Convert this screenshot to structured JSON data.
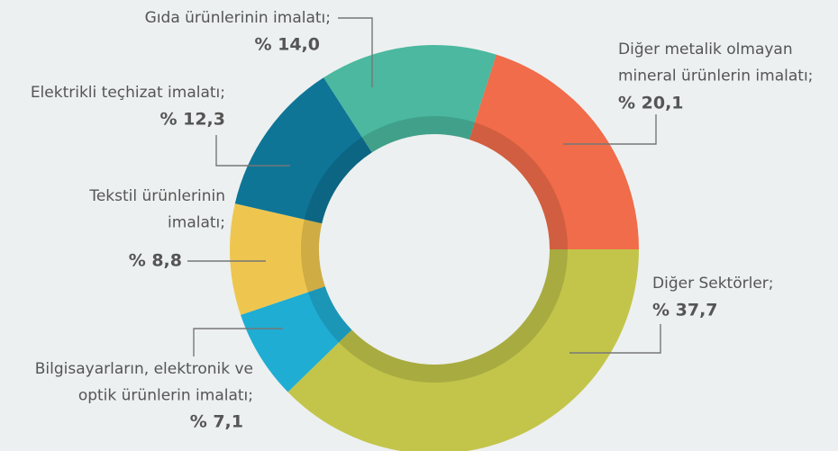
{
  "chart_data": {
    "type": "donut",
    "categories": [
      "Diğer metalik olmayan\nmineral ürünlerin imalatı;",
      "Diğer Sektörler;",
      "Bilgisayarların, elektronik ve\noptik ürünlerin imalatı;",
      "Tekstil ürünlerinin\nimalatı;",
      "Elektrikli teçhizat imalatı;",
      "Gıda ürünlerinin imalatı;"
    ],
    "values": [
      20.1,
      37.7,
      7.1,
      8.8,
      12.3,
      14.0
    ],
    "value_labels": [
      "% 20,1",
      "% 37,7",
      "% 7,1",
      "% 8,8",
      "% 12,3",
      "% 14,0"
    ],
    "colors": [
      "#f06c4a",
      "#c2c54a",
      "#1fadd3",
      "#eec64f",
      "#0e7597",
      "#4bb89f"
    ]
  }
}
